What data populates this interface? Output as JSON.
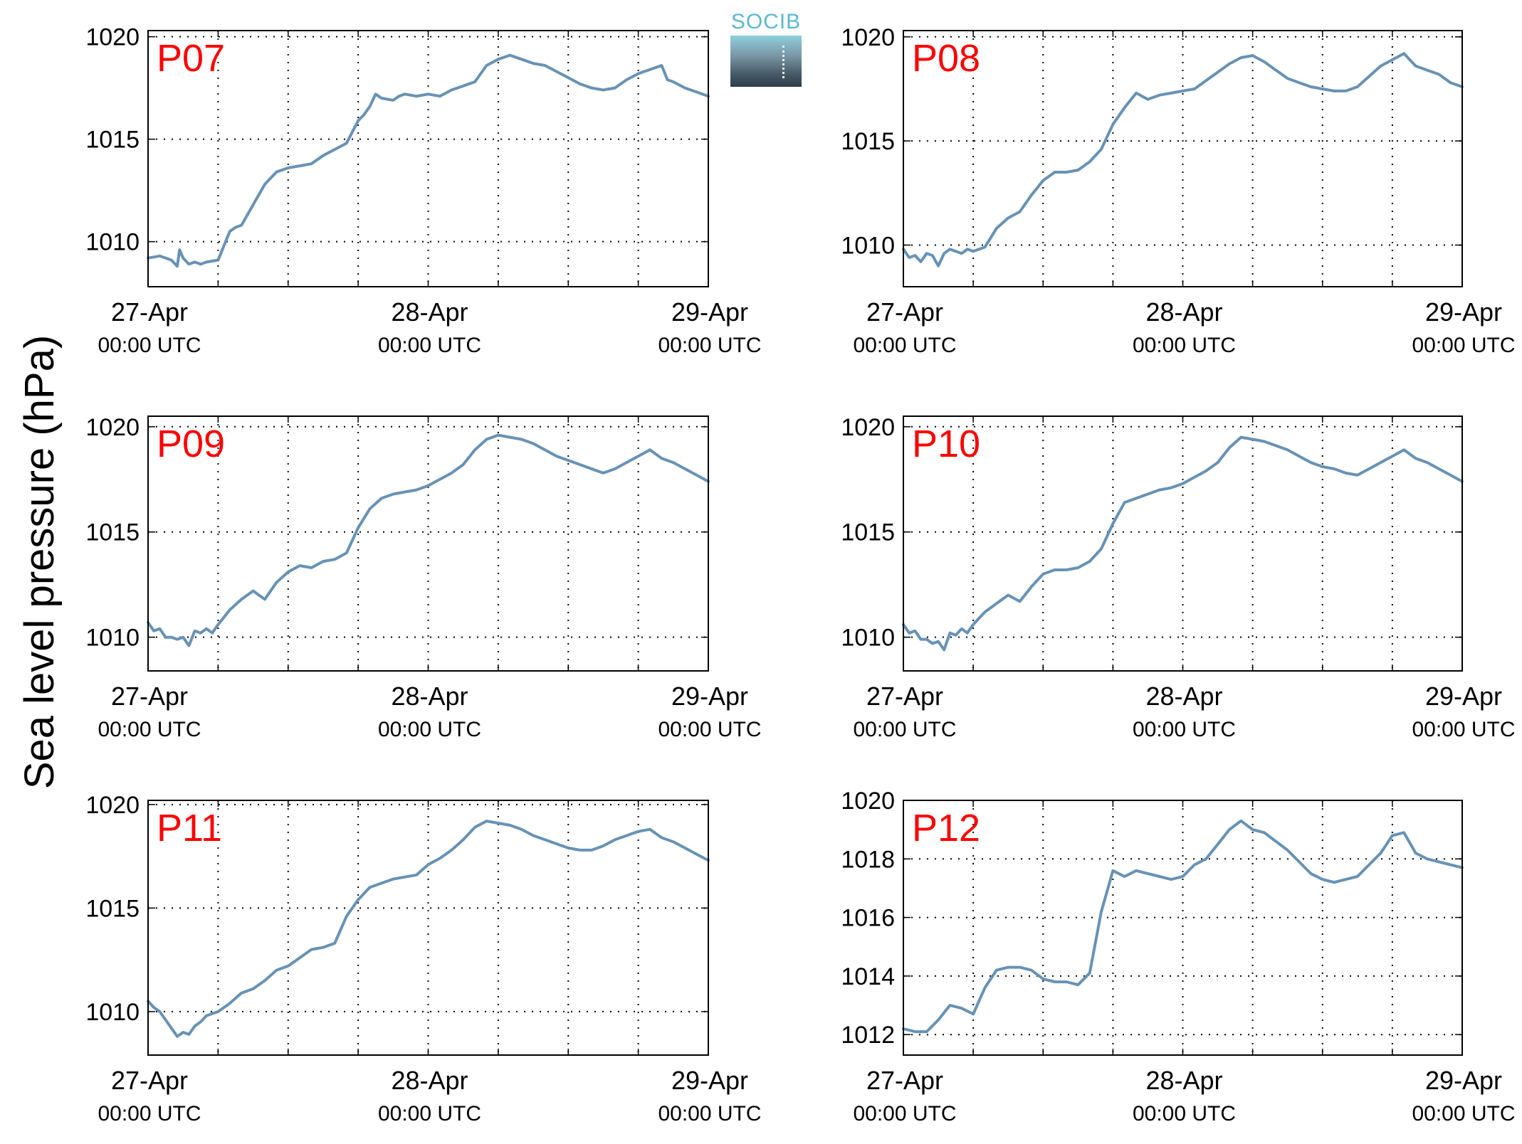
{
  "figure": {
    "ylabel": "Sea level pressure (hPa)",
    "logo": {
      "text": "SOCIB",
      "color": "#5bb8cf"
    },
    "line_color": "#6792b5",
    "label_color": "#ff0000"
  },
  "chart_data": [
    {
      "type": "line",
      "title": "P07",
      "xlabel": "",
      "ylabel": "Sea level pressure (hPa)",
      "x_unit": "hours since 27-Apr 00:00 UTC",
      "xlim": [
        0,
        48
      ],
      "ylim": [
        1007.8,
        1020.3
      ],
      "yticks": [
        1010,
        1015,
        1020
      ],
      "xticks": [
        {
          "value": 0,
          "date": "27-Apr",
          "time": "00:00 UTC"
        },
        {
          "value": 24,
          "date": "28-Apr",
          "time": "00:00 UTC"
        },
        {
          "value": 48,
          "date": "29-Apr",
          "time": "00:00 UTC"
        }
      ],
      "grid": true,
      "series": [
        {
          "x": [
            0,
            1,
            2,
            2.5,
            2.7,
            3,
            3.5,
            4,
            4.5,
            5,
            6,
            6.5,
            7,
            7.5,
            8,
            9,
            10,
            11,
            12,
            13,
            14,
            15,
            16,
            17,
            18,
            18.5,
            19,
            19.5,
            20,
            21,
            21.5,
            22,
            23,
            24,
            25,
            26,
            27,
            28,
            29,
            30,
            31,
            32,
            33,
            34,
            35,
            36,
            37,
            38,
            39,
            40,
            41,
            42,
            43,
            44,
            44.5,
            45,
            46,
            47,
            48
          ],
          "y": [
            1009.2,
            1009.3,
            1009.1,
            1008.8,
            1009.6,
            1009.2,
            1008.9,
            1009.0,
            1008.9,
            1009.0,
            1009.1,
            1009.8,
            1010.5,
            1010.7,
            1010.8,
            1011.8,
            1012.8,
            1013.4,
            1013.6,
            1013.7,
            1013.8,
            1014.2,
            1014.5,
            1014.8,
            1015.9,
            1016.2,
            1016.6,
            1017.2,
            1017.0,
            1016.9,
            1017.1,
            1017.2,
            1017.1,
            1017.2,
            1017.1,
            1017.4,
            1017.6,
            1017.8,
            1018.6,
            1018.9,
            1019.1,
            1018.9,
            1018.7,
            1018.6,
            1018.3,
            1018.0,
            1017.7,
            1017.5,
            1017.4,
            1017.5,
            1017.9,
            1018.2,
            1018.4,
            1018.6,
            1017.9,
            1017.8,
            1017.5,
            1017.3,
            1017.1
          ]
        }
      ]
    },
    {
      "type": "line",
      "title": "P08",
      "xlabel": "",
      "ylabel": "Sea level pressure (hPa)",
      "x_unit": "hours since 27-Apr 00:00 UTC",
      "xlim": [
        0,
        48
      ],
      "ylim": [
        1008.0,
        1020.3
      ],
      "yticks": [
        1010,
        1015,
        1020
      ],
      "xticks": [
        {
          "value": 0,
          "date": "27-Apr",
          "time": "00:00 UTC"
        },
        {
          "value": 24,
          "date": "28-Apr",
          "time": "00:00 UTC"
        },
        {
          "value": 48,
          "date": "29-Apr",
          "time": "00:00 UTC"
        }
      ],
      "grid": true,
      "series": [
        {
          "x": [
            0,
            0.5,
            1,
            1.5,
            2,
            2.5,
            3,
            3.5,
            4,
            4.5,
            5,
            5.5,
            6,
            7,
            8,
            9,
            10,
            11,
            12,
            13,
            14,
            15,
            16,
            17,
            18,
            19,
            20,
            21,
            22,
            23,
            24,
            25,
            26,
            27,
            28,
            29,
            30,
            31,
            32,
            33,
            34,
            35,
            36,
            37,
            38,
            39,
            40,
            41,
            42,
            43,
            44,
            45,
            46,
            47,
            48
          ],
          "y": [
            1009.8,
            1009.4,
            1009.5,
            1009.2,
            1009.6,
            1009.5,
            1009.0,
            1009.6,
            1009.8,
            1009.7,
            1009.6,
            1009.8,
            1009.7,
            1009.9,
            1010.8,
            1011.3,
            1011.6,
            1012.4,
            1013.1,
            1013.5,
            1013.5,
            1013.6,
            1014.0,
            1014.6,
            1015.8,
            1016.6,
            1017.3,
            1017.0,
            1017.2,
            1017.3,
            1017.4,
            1017.5,
            1017.9,
            1018.3,
            1018.7,
            1019.0,
            1019.1,
            1018.8,
            1018.4,
            1018.0,
            1017.8,
            1017.6,
            1017.5,
            1017.4,
            1017.4,
            1017.6,
            1018.1,
            1018.6,
            1018.9,
            1019.2,
            1018.6,
            1018.4,
            1018.2,
            1017.8,
            1017.6
          ]
        }
      ]
    },
    {
      "type": "line",
      "title": "P09",
      "xlabel": "",
      "ylabel": "Sea level pressure (hPa)",
      "x_unit": "hours since 27-Apr 00:00 UTC",
      "xlim": [
        0,
        48
      ],
      "ylim": [
        1008.4,
        1020.5
      ],
      "yticks": [
        1010,
        1015,
        1020
      ],
      "xticks": [
        {
          "value": 0,
          "date": "27-Apr",
          "time": "00:00 UTC"
        },
        {
          "value": 24,
          "date": "28-Apr",
          "time": "00:00 UTC"
        },
        {
          "value": 48,
          "date": "29-Apr",
          "time": "00:00 UTC"
        }
      ],
      "grid": true,
      "series": [
        {
          "x": [
            0,
            0.5,
            1,
            1.5,
            2,
            2.5,
            3,
            3.5,
            4,
            4.5,
            5,
            5.5,
            6,
            7,
            8,
            9,
            10,
            11,
            12,
            13,
            14,
            15,
            16,
            17,
            18,
            19,
            20,
            21,
            22,
            23,
            24,
            25,
            26,
            27,
            28,
            29,
            30,
            31,
            32,
            33,
            34,
            35,
            36,
            37,
            38,
            39,
            40,
            41,
            42,
            43,
            44,
            45,
            46,
            47,
            48
          ],
          "y": [
            1010.7,
            1010.3,
            1010.4,
            1010.0,
            1010.0,
            1009.9,
            1010.0,
            1009.6,
            1010.3,
            1010.2,
            1010.4,
            1010.2,
            1010.6,
            1011.3,
            1011.8,
            1012.2,
            1011.8,
            1012.6,
            1013.1,
            1013.4,
            1013.3,
            1013.6,
            1013.7,
            1014.0,
            1015.2,
            1016.1,
            1016.6,
            1016.8,
            1016.9,
            1017.0,
            1017.2,
            1017.5,
            1017.8,
            1018.2,
            1018.9,
            1019.4,
            1019.6,
            1019.5,
            1019.4,
            1019.2,
            1018.9,
            1018.6,
            1018.4,
            1018.2,
            1018.0,
            1017.8,
            1018.0,
            1018.3,
            1018.6,
            1018.9,
            1018.5,
            1018.3,
            1018.0,
            1017.7,
            1017.4
          ]
        }
      ]
    },
    {
      "type": "line",
      "title": "P10",
      "xlabel": "",
      "ylabel": "Sea level pressure (hPa)",
      "x_unit": "hours since 27-Apr 00:00 UTC",
      "xlim": [
        0,
        48
      ],
      "ylim": [
        1008.4,
        1020.5
      ],
      "yticks": [
        1010,
        1015,
        1020
      ],
      "xticks": [
        {
          "value": 0,
          "date": "27-Apr",
          "time": "00:00 UTC"
        },
        {
          "value": 24,
          "date": "28-Apr",
          "time": "00:00 UTC"
        },
        {
          "value": 48,
          "date": "29-Apr",
          "time": "00:00 UTC"
        }
      ],
      "grid": true,
      "series": [
        {
          "x": [
            0,
            0.5,
            1,
            1.5,
            2,
            2.5,
            3,
            3.5,
            4,
            4.5,
            5,
            5.5,
            6,
            7,
            8,
            9,
            10,
            11,
            12,
            13,
            14,
            15,
            16,
            17,
            18,
            19,
            20,
            21,
            22,
            23,
            24,
            25,
            26,
            27,
            28,
            29,
            30,
            31,
            32,
            33,
            34,
            35,
            36,
            37,
            38,
            39,
            40,
            41,
            42,
            43,
            44,
            45,
            46,
            47,
            48
          ],
          "y": [
            1010.6,
            1010.2,
            1010.3,
            1009.9,
            1009.9,
            1009.7,
            1009.8,
            1009.4,
            1010.2,
            1010.1,
            1010.4,
            1010.2,
            1010.6,
            1011.2,
            1011.6,
            1012.0,
            1011.7,
            1012.4,
            1013.0,
            1013.2,
            1013.2,
            1013.3,
            1013.6,
            1014.2,
            1015.4,
            1016.4,
            1016.6,
            1016.8,
            1017.0,
            1017.1,
            1017.3,
            1017.6,
            1017.9,
            1018.3,
            1019.0,
            1019.5,
            1019.4,
            1019.3,
            1019.1,
            1018.9,
            1018.6,
            1018.3,
            1018.1,
            1018.0,
            1017.8,
            1017.7,
            1018.0,
            1018.3,
            1018.6,
            1018.9,
            1018.5,
            1018.3,
            1018.0,
            1017.7,
            1017.4
          ]
        }
      ]
    },
    {
      "type": "line",
      "title": "P11",
      "xlabel": "",
      "ylabel": "Sea level pressure (hPa)",
      "x_unit": "hours since 27-Apr 00:00 UTC",
      "xlim": [
        0,
        48
      ],
      "ylim": [
        1007.9,
        1020.2
      ],
      "yticks": [
        1010,
        1015,
        1020
      ],
      "xticks": [
        {
          "value": 0,
          "date": "27-Apr",
          "time": "00:00 UTC"
        },
        {
          "value": 24,
          "date": "28-Apr",
          "time": "00:00 UTC"
        },
        {
          "value": 48,
          "date": "29-Apr",
          "time": "00:00 UTC"
        }
      ],
      "grid": true,
      "series": [
        {
          "x": [
            0,
            0.5,
            1,
            1.5,
            2,
            2.5,
            3,
            3.5,
            4,
            4.5,
            5,
            5.5,
            6,
            7,
            8,
            9,
            10,
            11,
            12,
            13,
            14,
            15,
            16,
            17,
            18,
            19,
            20,
            21,
            22,
            23,
            24,
            25,
            26,
            27,
            28,
            29,
            30,
            31,
            32,
            33,
            34,
            35,
            36,
            37,
            38,
            39,
            40,
            41,
            42,
            43,
            44,
            45,
            46,
            47,
            48
          ],
          "y": [
            1010.5,
            1010.2,
            1010.0,
            1009.6,
            1009.2,
            1008.8,
            1009.0,
            1008.9,
            1009.3,
            1009.5,
            1009.8,
            1009.9,
            1010.0,
            1010.4,
            1010.9,
            1011.1,
            1011.5,
            1012.0,
            1012.2,
            1012.6,
            1013.0,
            1013.1,
            1013.3,
            1014.6,
            1015.4,
            1016.0,
            1016.2,
            1016.4,
            1016.5,
            1016.6,
            1017.1,
            1017.4,
            1017.8,
            1018.3,
            1018.9,
            1019.2,
            1019.1,
            1019.0,
            1018.8,
            1018.5,
            1018.3,
            1018.1,
            1017.9,
            1017.8,
            1017.8,
            1018.0,
            1018.3,
            1018.5,
            1018.7,
            1018.8,
            1018.4,
            1018.2,
            1017.9,
            1017.6,
            1017.3
          ]
        }
      ]
    },
    {
      "type": "line",
      "title": "P12",
      "xlabel": "",
      "ylabel": "Sea level pressure (hPa)",
      "x_unit": "hours since 27-Apr 00:00 UTC",
      "xlim": [
        0,
        48
      ],
      "ylim": [
        1011.3,
        1020.0
      ],
      "yticks": [
        1012,
        1014,
        1016,
        1018,
        1020
      ],
      "xticks": [
        {
          "value": 0,
          "date": "27-Apr",
          "time": "00:00 UTC"
        },
        {
          "value": 24,
          "date": "28-Apr",
          "time": "00:00 UTC"
        },
        {
          "value": 48,
          "date": "29-Apr",
          "time": "00:00 UTC"
        }
      ],
      "grid": true,
      "series": [
        {
          "x": [
            0,
            1,
            2,
            3,
            4,
            5,
            6,
            7,
            8,
            9,
            10,
            11,
            12,
            13,
            14,
            15,
            16,
            17,
            18,
            19,
            20,
            21,
            22,
            23,
            24,
            25,
            26,
            27,
            28,
            29,
            30,
            31,
            32,
            33,
            34,
            35,
            36,
            37,
            38,
            39,
            40,
            41,
            42,
            43,
            44,
            45,
            46,
            47,
            48
          ],
          "y": [
            1012.2,
            1012.1,
            1012.1,
            1012.5,
            1013.0,
            1012.9,
            1012.7,
            1013.6,
            1014.2,
            1014.3,
            1014.3,
            1014.2,
            1013.9,
            1013.8,
            1013.8,
            1013.7,
            1014.1,
            1016.2,
            1017.6,
            1017.4,
            1017.6,
            1017.5,
            1017.4,
            1017.3,
            1017.4,
            1017.8,
            1018.0,
            1018.5,
            1019.0,
            1019.3,
            1019.0,
            1018.9,
            1018.6,
            1018.3,
            1017.9,
            1017.5,
            1017.3,
            1017.2,
            1017.3,
            1017.4,
            1017.8,
            1018.2,
            1018.8,
            1018.9,
            1018.2,
            1018.0,
            1017.9,
            1017.8,
            1017.7
          ]
        }
      ]
    }
  ]
}
